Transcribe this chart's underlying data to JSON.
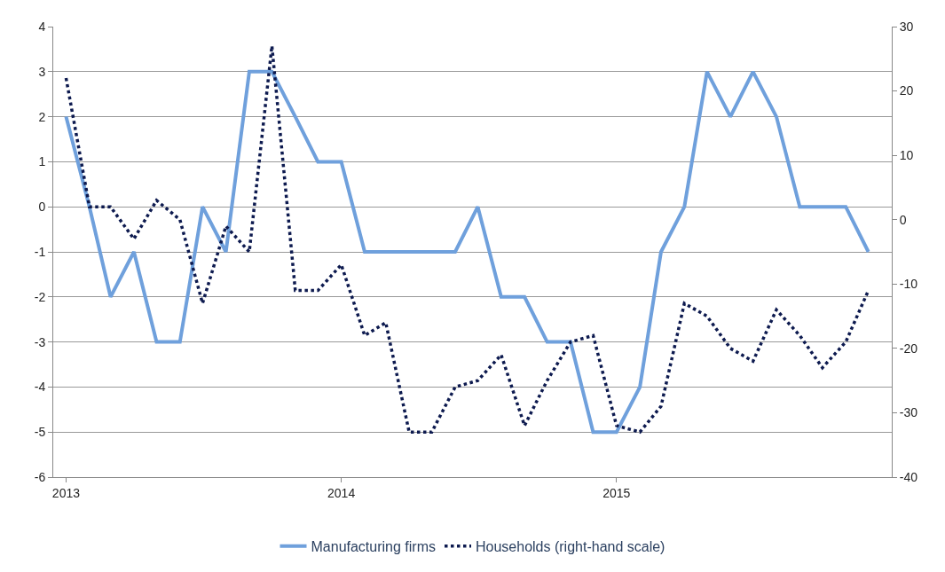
{
  "chart_data": {
    "type": "line",
    "x": [
      "2013-01",
      "2013-02",
      "2013-03",
      "2013-04",
      "2013-05",
      "2013-06",
      "2013-07",
      "2013-08",
      "2013-09",
      "2013-10",
      "2013-11",
      "2013-12",
      "2014-01",
      "2014-02",
      "2014-03",
      "2014-04",
      "2014-05",
      "2014-06",
      "2014-07",
      "2014-08",
      "2014-09",
      "2014-10",
      "2014-11",
      "2014-12",
      "2015-01",
      "2015-02",
      "2015-03",
      "2015-04",
      "2015-05",
      "2015-06",
      "2015-07",
      "2015-08",
      "2015-09",
      "2015-10",
      "2015-11",
      "2015-12"
    ],
    "series": [
      {
        "name": "Manufacturing firms",
        "color": "#6fa0dc",
        "line_style": "solid",
        "values": [
          2,
          0,
          -2,
          -1,
          -3,
          -3,
          0,
          -1,
          3,
          3,
          2,
          1,
          1,
          -1,
          -1,
          -1,
          -1,
          -1,
          0,
          -2,
          -2,
          -3,
          -3,
          -5,
          -5,
          -4,
          -1,
          0,
          3,
          2,
          3,
          2,
          0,
          0,
          0,
          -1
        ]
      },
      {
        "name": "Households (right-hand scale)",
        "color": "#0d1a4f",
        "line_style": "dotted",
        "axis": "y2",
        "values": [
          22,
          2,
          2,
          -3,
          3,
          0,
          -13,
          -1,
          -5,
          27,
          -11,
          -11,
          -7,
          -18,
          -16,
          -33,
          -33,
          -26,
          -25,
          -21,
          -32,
          -25,
          -19,
          -18,
          -32,
          -33,
          -29,
          -13,
          -15,
          -20,
          -22,
          -14,
          -18,
          -23,
          -19,
          -11
        ]
      }
    ],
    "xlim": [
      "2012-12-15",
      "2016-01-01"
    ],
    "xticks": [
      "2013",
      "2014",
      "2015"
    ],
    "ylim": [
      -6,
      4
    ],
    "yticks": [
      -6,
      -5,
      -4,
      -3,
      -2,
      -1,
      0,
      1,
      2,
      3,
      4
    ],
    "y2lim": [
      -40,
      30
    ],
    "y2ticks": [
      -40,
      -30,
      -20,
      -10,
      0,
      10,
      20,
      30
    ],
    "grid": "y",
    "legend": "bottom",
    "marker": "none"
  }
}
